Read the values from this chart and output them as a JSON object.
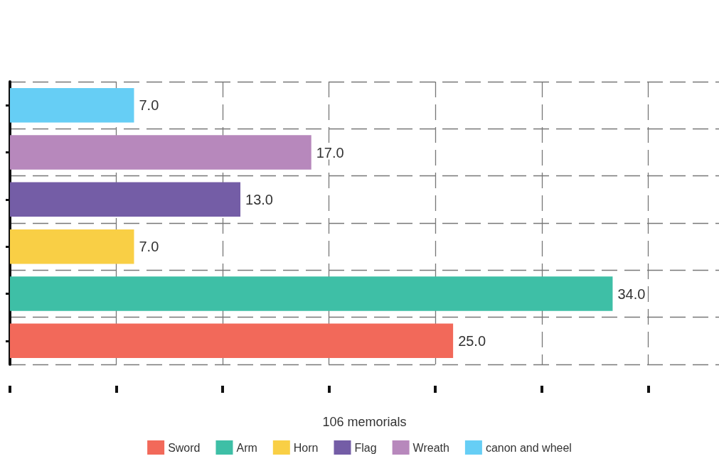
{
  "chart_data": {
    "type": "bar",
    "orientation": "horizontal",
    "stacked": true,
    "xlabel": "106 memorials",
    "categories": [
      null,
      null,
      null,
      null,
      null,
      null
    ],
    "series": [
      {
        "name": "Sword",
        "color": "#f2695a",
        "values": [
          null,
          null,
          null,
          null,
          null,
          25
        ],
        "value_labels": [
          null,
          null,
          null,
          null,
          null,
          "25.0"
        ]
      },
      {
        "name": "Arm",
        "color": "#3ebfa6",
        "values": [
          null,
          null,
          null,
          null,
          34,
          null
        ],
        "value_labels": [
          null,
          null,
          null,
          null,
          "34.0",
          null
        ]
      },
      {
        "name": "Horn",
        "color": "#f9cf45",
        "values": [
          null,
          null,
          null,
          7,
          null,
          null
        ],
        "value_labels": [
          null,
          null,
          null,
          "7.0",
          null,
          null
        ]
      },
      {
        "name": "Flag",
        "color": "#745da6",
        "values": [
          null,
          null,
          13,
          null,
          null,
          null
        ],
        "value_labels": [
          null,
          null,
          "13.0",
          null,
          null,
          null
        ]
      },
      {
        "name": "Wreath",
        "color": "#b788bc",
        "values": [
          null,
          17,
          null,
          null,
          null,
          null
        ],
        "value_labels": [
          null,
          "17.0",
          null,
          null,
          null,
          null
        ]
      },
      {
        "name": "canon and wheel",
        "color": "#66cef5",
        "values": [
          7,
          null,
          null,
          null,
          null,
          null
        ],
        "value_labels": [
          "7.0",
          null,
          null,
          null,
          null,
          null
        ]
      }
    ],
    "xlim": [
      0,
      40
    ],
    "xticks": [
      {
        "value": 0,
        "label": null
      },
      {
        "value": 6,
        "label": null
      },
      {
        "value": 12,
        "label": null
      },
      {
        "value": 18,
        "label": null
      },
      {
        "value": 24,
        "label": null
      },
      {
        "value": 30,
        "label": null
      },
      {
        "value": 36,
        "label": null
      }
    ],
    "grid": true,
    "legend": "bottom"
  }
}
